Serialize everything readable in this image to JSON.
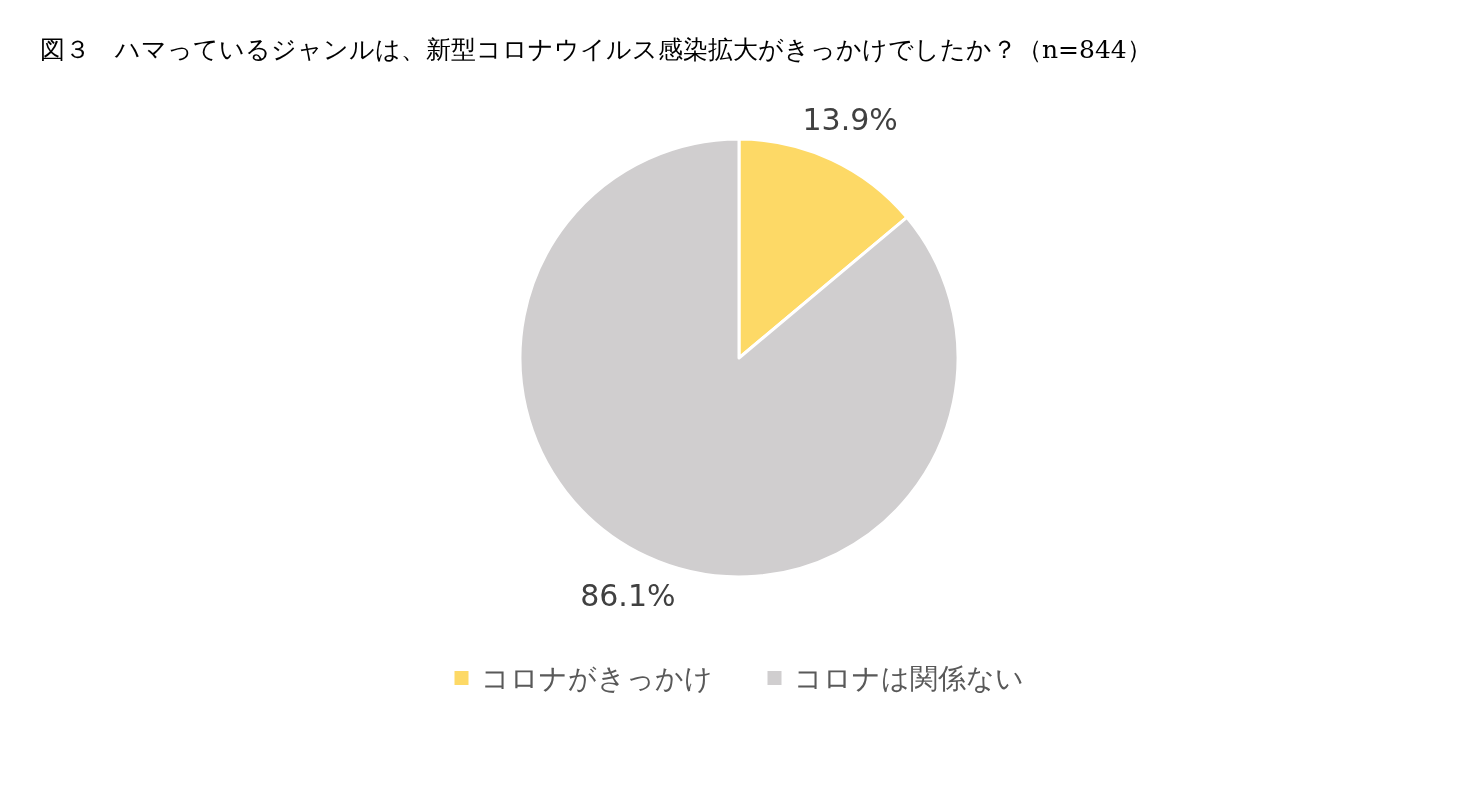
{
  "chart_data": {
    "type": "pie",
    "title": "図３　ハマっているジャンルは、新型コロナウイルス感染拡大がきっかけでしたか？（n=844）",
    "categories": [
      "コロナがきっかけ",
      "コロナは関係ない"
    ],
    "values": [
      13.9,
      86.1
    ],
    "colors": [
      "#fdd966",
      "#d0cecf"
    ],
    "value_labels": [
      "13.9%",
      "86.1%"
    ],
    "legend": "bottom"
  }
}
